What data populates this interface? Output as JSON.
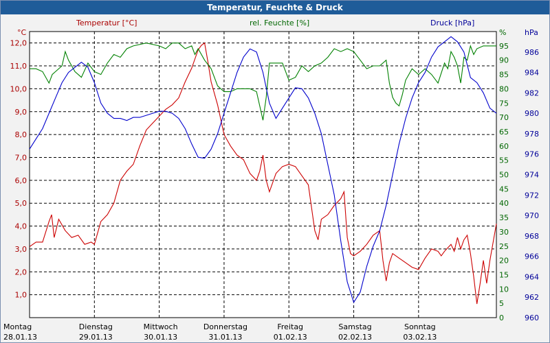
{
  "window": {
    "title": "Temperatur, Feuchte & Druck"
  },
  "chart_data": {
    "type": "line",
    "title": "Temperatur, Feuchte & Druck",
    "x_unit": "days since 28.01.13 00:00",
    "x_range": [
      0,
      7.2
    ],
    "x_ticks": [
      {
        "x": 0,
        "day": "Montag",
        "date": "28.01.13"
      },
      {
        "x": 1,
        "day": "Dienstag",
        "date": "29.01.13"
      },
      {
        "x": 2,
        "day": "Mittwoch",
        "date": "30.01.13"
      },
      {
        "x": 3,
        "day": "Donnerstag",
        "date": "31.01.13"
      },
      {
        "x": 4,
        "day": "Freitag",
        "date": "01.02.13"
      },
      {
        "x": 5,
        "day": "Samstag",
        "date": "02.02.13"
      },
      {
        "x": 6,
        "day": "Sonntag",
        "date": "03.02.13"
      }
    ],
    "axes": {
      "temperature": {
        "unit_label": "°C",
        "header": "Temperatur [°C]",
        "color": "#aa0000",
        "range": [
          0,
          12.5
        ],
        "ticks": [
          "1,0",
          "2,0",
          "3,0",
          "4,0",
          "5,0",
          "6,0",
          "7,0",
          "8,0",
          "9,0",
          "10,0",
          "11,0",
          "12,0"
        ]
      },
      "humidity": {
        "unit_label": "%",
        "header": "rel. Feuchte [%]",
        "color": "#006600",
        "range": [
          0,
          100
        ],
        "ticks": [
          "0",
          "5",
          "10",
          "15",
          "20",
          "25",
          "30",
          "35",
          "40",
          "45",
          "50",
          "55",
          "60",
          "65",
          "70",
          "75",
          "80",
          "85",
          "90",
          "95"
        ]
      },
      "pressure": {
        "unit_label": "hPa",
        "header": "Druck [hPa]",
        "color": "#000099",
        "range": [
          960,
          988
        ],
        "ticks": [
          "960",
          "962",
          "964",
          "966",
          "968",
          "970",
          "972",
          "974",
          "976",
          "978",
          "980",
          "982",
          "984",
          "986"
        ]
      }
    },
    "series": [
      {
        "name": "Temperatur [°C]",
        "axis": "temperature",
        "color": "#cc0000",
        "points": [
          [
            0,
            3.1
          ],
          [
            0.1,
            3.3
          ],
          [
            0.2,
            3.3
          ],
          [
            0.3,
            4.2
          ],
          [
            0.34,
            4.5
          ],
          [
            0.38,
            3.5
          ],
          [
            0.45,
            4.3
          ],
          [
            0.55,
            3.8
          ],
          [
            0.65,
            3.5
          ],
          [
            0.75,
            3.6
          ],
          [
            0.85,
            3.2
          ],
          [
            0.95,
            3.3
          ],
          [
            1.0,
            3.2
          ],
          [
            1.1,
            4.2
          ],
          [
            1.2,
            4.5
          ],
          [
            1.3,
            5.0
          ],
          [
            1.4,
            6.0
          ],
          [
            1.5,
            6.4
          ],
          [
            1.6,
            6.7
          ],
          [
            1.7,
            7.5
          ],
          [
            1.8,
            8.2
          ],
          [
            1.9,
            8.5
          ],
          [
            2.0,
            8.8
          ],
          [
            2.1,
            9.1
          ],
          [
            2.2,
            9.3
          ],
          [
            2.3,
            9.6
          ],
          [
            2.4,
            10.3
          ],
          [
            2.5,
            10.9
          ],
          [
            2.55,
            11.3
          ],
          [
            2.6,
            11.7
          ],
          [
            2.65,
            11.9
          ],
          [
            2.7,
            12.0
          ],
          [
            2.75,
            11.2
          ],
          [
            2.8,
            10.3
          ],
          [
            2.9,
            9.3
          ],
          [
            3.0,
            8.0
          ],
          [
            3.1,
            7.5
          ],
          [
            3.2,
            7.1
          ],
          [
            3.3,
            6.9
          ],
          [
            3.4,
            6.3
          ],
          [
            3.5,
            6.0
          ],
          [
            3.55,
            6.4
          ],
          [
            3.6,
            7.1
          ],
          [
            3.65,
            6.0
          ],
          [
            3.7,
            5.5
          ],
          [
            3.8,
            6.3
          ],
          [
            3.9,
            6.6
          ],
          [
            4.0,
            6.7
          ],
          [
            4.1,
            6.6
          ],
          [
            4.2,
            6.2
          ],
          [
            4.3,
            5.8
          ],
          [
            4.35,
            4.8
          ],
          [
            4.4,
            3.8
          ],
          [
            4.45,
            3.4
          ],
          [
            4.5,
            4.3
          ],
          [
            4.6,
            4.5
          ],
          [
            4.7,
            4.9
          ],
          [
            4.8,
            5.2
          ],
          [
            4.85,
            5.5
          ],
          [
            4.9,
            3.5
          ],
          [
            4.95,
            2.8
          ],
          [
            5.0,
            2.7
          ],
          [
            5.1,
            2.9
          ],
          [
            5.2,
            3.2
          ],
          [
            5.3,
            3.6
          ],
          [
            5.4,
            3.8
          ],
          [
            5.45,
            2.5
          ],
          [
            5.5,
            1.6
          ],
          [
            5.55,
            2.4
          ],
          [
            5.6,
            2.8
          ],
          [
            5.7,
            2.6
          ],
          [
            5.8,
            2.4
          ],
          [
            5.9,
            2.2
          ],
          [
            6.0,
            2.1
          ],
          [
            6.1,
            2.6
          ],
          [
            6.2,
            3.0
          ],
          [
            6.3,
            2.9
          ],
          [
            6.35,
            2.7
          ],
          [
            6.4,
            2.9
          ],
          [
            6.5,
            3.2
          ],
          [
            6.55,
            2.9
          ],
          [
            6.6,
            3.5
          ],
          [
            6.65,
            3.0
          ],
          [
            6.7,
            3.4
          ],
          [
            6.75,
            3.6
          ],
          [
            6.8,
            2.8
          ],
          [
            6.85,
            1.8
          ],
          [
            6.9,
            0.6
          ],
          [
            6.95,
            1.5
          ],
          [
            7.0,
            2.5
          ],
          [
            7.05,
            1.5
          ],
          [
            7.1,
            2.5
          ],
          [
            7.2,
            4.1
          ]
        ]
      },
      {
        "name": "rel. Feuchte [%]",
        "axis": "humidity",
        "color": "#008000",
        "points": [
          [
            0,
            87
          ],
          [
            0.1,
            87
          ],
          [
            0.2,
            86
          ],
          [
            0.3,
            82
          ],
          [
            0.35,
            85
          ],
          [
            0.4,
            86
          ],
          [
            0.5,
            88
          ],
          [
            0.55,
            93
          ],
          [
            0.6,
            90
          ],
          [
            0.7,
            86
          ],
          [
            0.8,
            84
          ],
          [
            0.9,
            89
          ],
          [
            1.0,
            86
          ],
          [
            1.1,
            85
          ],
          [
            1.2,
            89
          ],
          [
            1.3,
            92
          ],
          [
            1.4,
            91
          ],
          [
            1.5,
            94
          ],
          [
            1.6,
            95
          ],
          [
            1.8,
            96
          ],
          [
            2.0,
            95
          ],
          [
            2.1,
            94
          ],
          [
            2.2,
            96
          ],
          [
            2.3,
            96
          ],
          [
            2.4,
            94
          ],
          [
            2.5,
            95
          ],
          [
            2.55,
            92
          ],
          [
            2.6,
            94
          ],
          [
            2.7,
            90
          ],
          [
            2.8,
            87
          ],
          [
            2.9,
            81
          ],
          [
            3.0,
            79
          ],
          [
            3.1,
            79
          ],
          [
            3.2,
            80
          ],
          [
            3.3,
            80
          ],
          [
            3.4,
            80
          ],
          [
            3.5,
            79
          ],
          [
            3.55,
            74
          ],
          [
            3.6,
            69
          ],
          [
            3.65,
            77
          ],
          [
            3.7,
            89
          ],
          [
            3.8,
            89
          ],
          [
            3.9,
            89
          ],
          [
            3.95,
            86
          ],
          [
            4.0,
            83
          ],
          [
            4.1,
            84
          ],
          [
            4.2,
            88
          ],
          [
            4.3,
            86
          ],
          [
            4.4,
            88
          ],
          [
            4.5,
            89
          ],
          [
            4.6,
            91
          ],
          [
            4.7,
            94
          ],
          [
            4.8,
            93
          ],
          [
            4.9,
            94
          ],
          [
            5.0,
            93
          ],
          [
            5.1,
            90
          ],
          [
            5.2,
            87
          ],
          [
            5.3,
            88
          ],
          [
            5.4,
            88
          ],
          [
            5.5,
            90
          ],
          [
            5.55,
            82
          ],
          [
            5.6,
            77
          ],
          [
            5.65,
            75
          ],
          [
            5.7,
            74
          ],
          [
            5.75,
            78
          ],
          [
            5.8,
            83
          ],
          [
            5.9,
            87
          ],
          [
            6.0,
            85
          ],
          [
            6.1,
            87
          ],
          [
            6.2,
            85
          ],
          [
            6.3,
            82
          ],
          [
            6.4,
            89
          ],
          [
            6.45,
            87
          ],
          [
            6.5,
            93
          ],
          [
            6.55,
            91
          ],
          [
            6.6,
            88
          ],
          [
            6.65,
            82
          ],
          [
            6.7,
            91
          ],
          [
            6.75,
            90
          ],
          [
            6.8,
            95
          ],
          [
            6.85,
            92
          ],
          [
            6.9,
            94
          ],
          [
            7.0,
            95
          ],
          [
            7.1,
            95
          ],
          [
            7.2,
            95
          ]
        ]
      },
      {
        "name": "Druck [hPa]",
        "axis": "pressure",
        "color": "#0000cc",
        "points": [
          [
            0,
            976.5
          ],
          [
            0.1,
            977.5
          ],
          [
            0.2,
            978.5
          ],
          [
            0.3,
            980
          ],
          [
            0.4,
            981.5
          ],
          [
            0.5,
            983
          ],
          [
            0.6,
            984
          ],
          [
            0.7,
            984.5
          ],
          [
            0.8,
            985
          ],
          [
            0.9,
            984.5
          ],
          [
            1.0,
            983
          ],
          [
            1.1,
            981
          ],
          [
            1.2,
            980
          ],
          [
            1.3,
            979.5
          ],
          [
            1.4,
            979.5
          ],
          [
            1.5,
            979.3
          ],
          [
            1.6,
            979.6
          ],
          [
            1.7,
            979.6
          ],
          [
            1.8,
            979.8
          ],
          [
            1.9,
            980
          ],
          [
            2.0,
            980.2
          ],
          [
            2.1,
            980.2
          ],
          [
            2.2,
            980
          ],
          [
            2.3,
            979.5
          ],
          [
            2.4,
            978.5
          ],
          [
            2.5,
            977
          ],
          [
            2.6,
            975.7
          ],
          [
            2.7,
            975.6
          ],
          [
            2.8,
            976.5
          ],
          [
            2.9,
            978
          ],
          [
            3.0,
            980
          ],
          [
            3.1,
            982
          ],
          [
            3.2,
            984
          ],
          [
            3.3,
            985.5
          ],
          [
            3.4,
            986.3
          ],
          [
            3.5,
            986
          ],
          [
            3.6,
            984
          ],
          [
            3.7,
            981
          ],
          [
            3.8,
            979.5
          ],
          [
            3.9,
            980.5
          ],
          [
            4.0,
            981.5
          ],
          [
            4.1,
            982.5
          ],
          [
            4.2,
            982.4
          ],
          [
            4.3,
            981.5
          ],
          [
            4.4,
            980
          ],
          [
            4.5,
            978
          ],
          [
            4.6,
            975
          ],
          [
            4.7,
            972
          ],
          [
            4.8,
            967.5
          ],
          [
            4.9,
            963.5
          ],
          [
            5.0,
            961.5
          ],
          [
            5.1,
            962.5
          ],
          [
            5.2,
            965
          ],
          [
            5.3,
            967
          ],
          [
            5.4,
            968.5
          ],
          [
            5.5,
            971
          ],
          [
            5.6,
            974
          ],
          [
            5.7,
            977
          ],
          [
            5.8,
            979.5
          ],
          [
            5.9,
            981.5
          ],
          [
            6.0,
            983
          ],
          [
            6.1,
            984
          ],
          [
            6.2,
            985.5
          ],
          [
            6.3,
            986.5
          ],
          [
            6.4,
            987
          ],
          [
            6.5,
            987.5
          ],
          [
            6.6,
            987
          ],
          [
            6.7,
            986
          ],
          [
            6.8,
            983.5
          ],
          [
            6.9,
            983
          ],
          [
            7.0,
            982
          ],
          [
            7.1,
            980.5
          ],
          [
            7.2,
            980
          ]
        ]
      }
    ],
    "grid": "dashed"
  }
}
